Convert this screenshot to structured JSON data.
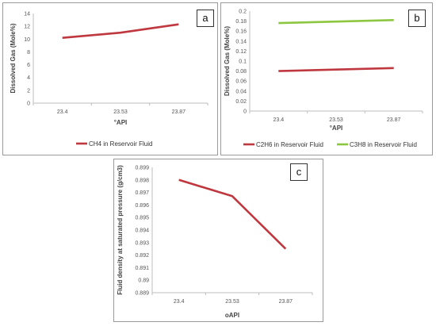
{
  "colors": {
    "series_red": "#c0383f",
    "series_green": "#8dc63f",
    "axis": "#bdbdbd"
  },
  "chart_data": [
    {
      "id": "a",
      "panel_label": "a",
      "type": "line",
      "categories": [
        "23.4",
        "23.53",
        "23.87"
      ],
      "ylabel": "Dissolved Gas (Mole%)",
      "xlabel": "°API",
      "ylim": [
        0,
        14
      ],
      "yticks": [
        "0",
        "2",
        "4",
        "6",
        "8",
        "10",
        "12",
        "14"
      ],
      "grid": false,
      "legend": "bottom",
      "series": [
        {
          "name": "CH4 in Reservoir Fluid",
          "color": "#c0383f",
          "values": [
            10.2,
            11.0,
            12.3
          ]
        }
      ]
    },
    {
      "id": "b",
      "panel_label": "b",
      "type": "line",
      "categories": [
        "23.4",
        "23.53",
        "23.87"
      ],
      "ylabel": "Dissolved Gas (Mole%)",
      "xlabel": "°API",
      "ylim": [
        0,
        0.2
      ],
      "yticks": [
        "0",
        "0.02",
        "0.04",
        "0.06",
        "0.08",
        "0.1",
        "0.12",
        "0.14",
        "0.16",
        "0.18",
        "0.2"
      ],
      "grid": false,
      "legend": "bottom",
      "series": [
        {
          "name": "C2H6  in Reservoir Fluid",
          "color": "#c0383f",
          "values": [
            0.08,
            0.083,
            0.086
          ]
        },
        {
          "name": "C3H8  in Reservoir Fluid",
          "color": "#8dc63f",
          "values": [
            0.176,
            0.179,
            0.182
          ]
        }
      ]
    },
    {
      "id": "c",
      "panel_label": "c",
      "type": "line",
      "categories": [
        "23.4",
        "23.53",
        "23.87"
      ],
      "ylabel": "Fluid density at saturated pressure (g/cm3)",
      "xlabel": "oAPI",
      "ylim": [
        0.889,
        0.899
      ],
      "yticks": [
        "0.889",
        "0.89",
        "0.891",
        "0.892",
        "0.893",
        "0.894",
        "0.895",
        "0.896",
        "0.897",
        "0.898",
        "0.899"
      ],
      "grid": false,
      "legend": "none",
      "series": [
        {
          "color": "#c0383f",
          "values": [
            0.898,
            0.8967,
            0.8925
          ]
        }
      ]
    }
  ]
}
